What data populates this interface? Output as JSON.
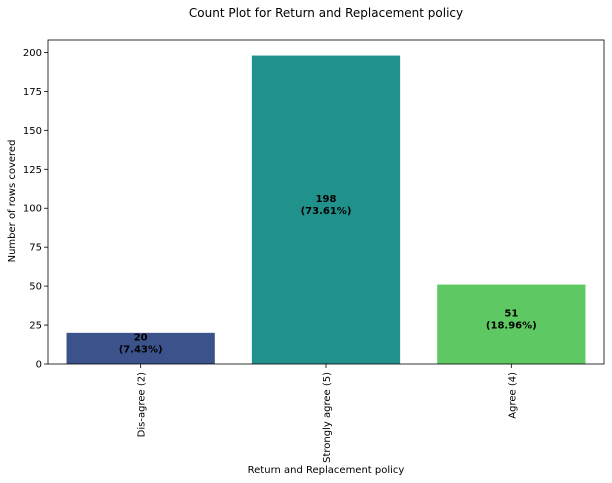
{
  "chart_data": {
    "type": "bar",
    "title": "Count Plot for Return and Replacement policy",
    "xlabel": "Return and Replacement policy",
    "ylabel": "Number of rows covered",
    "categories": [
      "Dis-agree (2)",
      "Strongly agree (5)",
      "Agree (4)"
    ],
    "values": [
      20,
      198,
      51
    ],
    "value_labels": [
      "20",
      "198",
      "51"
    ],
    "percent_labels": [
      "(7.43%)",
      "(73.61%)",
      "(18.96%)"
    ],
    "colors": [
      "#3b528b",
      "#21918c",
      "#5ec962"
    ],
    "ylim": [
      0,
      208
    ],
    "yticks": [
      0,
      25,
      50,
      75,
      100,
      125,
      150,
      175,
      200
    ],
    "x_tick_rotation": "vertical",
    "grid": false,
    "legend": "none"
  }
}
